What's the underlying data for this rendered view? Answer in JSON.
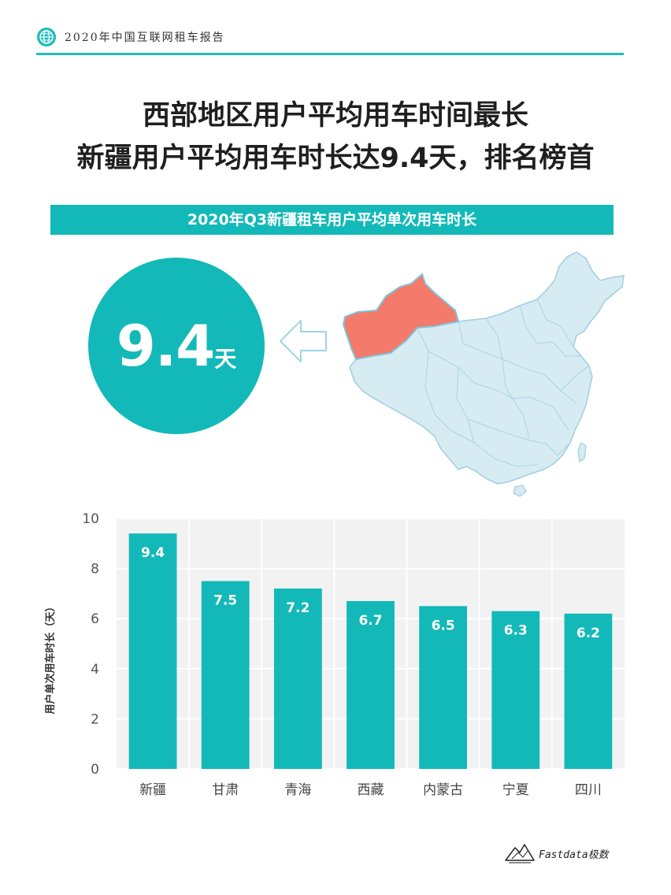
{
  "header": {
    "title": "2020年中国互联网租车报告"
  },
  "headline": {
    "line1": "西部地区用户平均用车时间最长",
    "line2": "新疆用户平均用车时长达9.4天，排名榜首"
  },
  "banner": {
    "text": "2020年Q3新疆租车用户平均单次用车时长"
  },
  "highlight": {
    "value": "9.4",
    "unit": "天"
  },
  "colors": {
    "accent": "#13b9b8",
    "highlight_region": "#f47a6b",
    "map_fill": "#d7ebf2",
    "plot_bg": "#f2f2f2"
  },
  "chart_data": {
    "type": "bar",
    "categories": [
      "新疆",
      "甘肃",
      "青海",
      "西藏",
      "内蒙古",
      "宁夏",
      "四川"
    ],
    "values": [
      9.4,
      7.5,
      7.2,
      6.7,
      6.5,
      6.3,
      6.2
    ],
    "ylabel": "用户单次用车时长（天）",
    "ylim": [
      0,
      10
    ],
    "yticks": [
      0,
      2,
      4,
      6,
      8,
      10
    ],
    "grid": true,
    "data_labels": true
  },
  "footer": {
    "brand": "Fastdata极数"
  }
}
